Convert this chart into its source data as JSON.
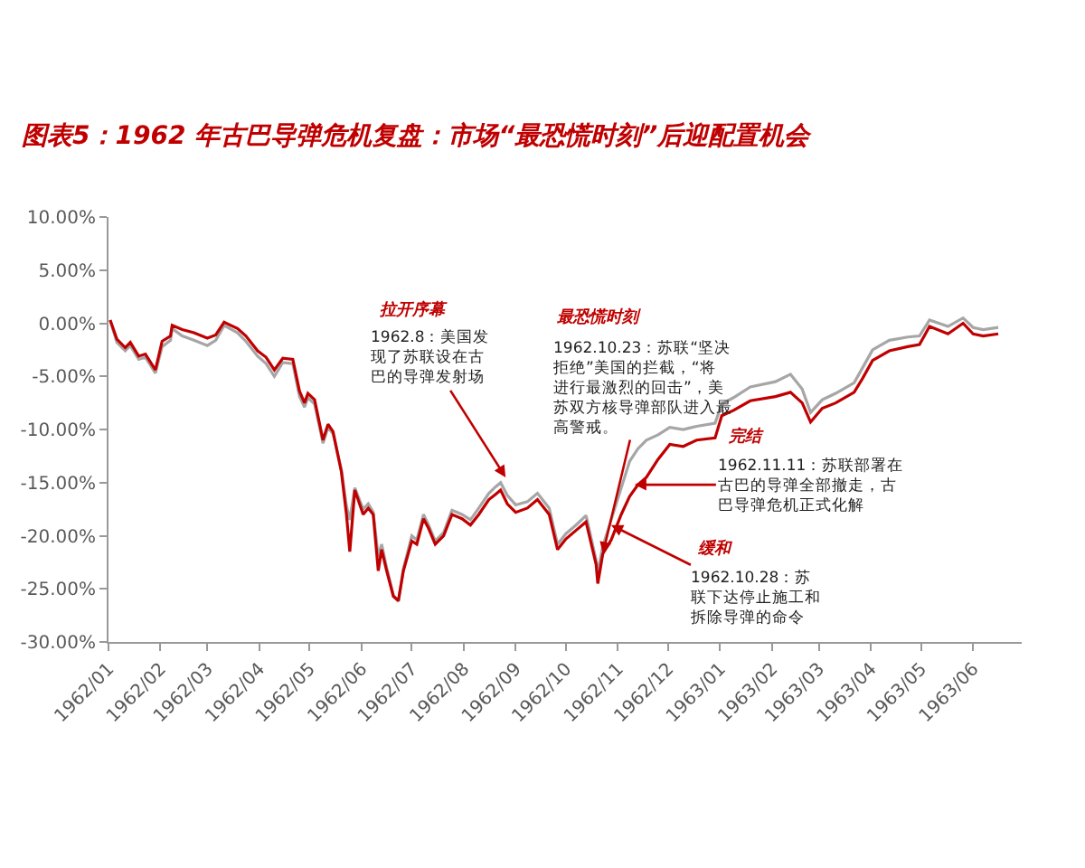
{
  "chart_data": {
    "type": "line",
    "title": "图表5：1962 年古巴导弹危机复盘：市场“最恐慌时刻”后迎配置机会",
    "x": [
      "1962-01-02",
      "1962-01-06",
      "1962-01-11",
      "1962-01-14",
      "1962-01-19",
      "1962-01-23",
      "1962-01-29",
      "1962-02-02",
      "1962-02-07",
      "1962-02-08",
      "1962-02-14",
      "1962-02-21",
      "1962-03-01",
      "1962-03-06",
      "1962-03-11",
      "1962-03-19",
      "1962-03-24",
      "1962-03-31",
      "1962-04-05",
      "1962-04-10",
      "1962-04-15",
      "1962-04-21",
      "1962-04-25",
      "1962-04-28",
      "1962-04-30",
      "1962-05-04",
      "1962-05-09",
      "1962-05-12",
      "1962-05-15",
      "1962-05-20",
      "1962-05-23",
      "1962-05-25",
      "1962-05-28",
      "1962-06-02",
      "1962-06-05",
      "1962-06-08",
      "1962-06-11",
      "1962-06-13",
      "1962-06-16",
      "1962-06-20",
      "1962-06-23",
      "1962-06-26",
      "1962-07-01",
      "1962-07-04",
      "1962-07-08",
      "1962-07-11",
      "1962-07-15",
      "1962-07-20",
      "1962-07-25",
      "1962-07-31",
      "1962-08-05",
      "1962-08-10",
      "1962-08-16",
      "1962-08-20",
      "1962-08-23",
      "1962-08-27",
      "1962-09-01",
      "1962-09-08",
      "1962-09-14",
      "1962-09-21",
      "1962-09-26",
      "1962-10-01",
      "1962-10-07",
      "1962-10-13",
      "1962-10-19",
      "1962-10-20",
      "1962-10-23",
      "1962-10-28",
      "1962-11-03",
      "1962-11-08",
      "1962-11-13",
      "1962-11-18",
      "1962-11-25",
      "1962-12-02",
      "1962-12-10",
      "1962-12-18",
      "1962-12-29",
      "1963-01-02",
      "1963-01-09",
      "1963-01-19",
      "1963-02-03",
      "1963-02-12",
      "1963-02-19",
      "1963-02-24",
      "1963-03-03",
      "1963-03-11",
      "1963-03-22",
      "1963-03-27",
      "1963-04-02",
      "1963-04-12",
      "1963-04-23",
      "1963-04-30",
      "1963-05-06",
      "1963-05-17",
      "1963-05-26",
      "1963-06-01",
      "1963-06-07",
      "1963-06-16"
    ],
    "series": [
      {
        "color": "#a6a6a6",
        "values": [
          0.3,
          -1.8,
          -2.6,
          -2.1,
          -3.4,
          -3.2,
          -4.7,
          -2.2,
          -1.6,
          -0.5,
          -1.2,
          -1.6,
          -2.1,
          -1.6,
          -0.2,
          -0.9,
          -1.7,
          -3.1,
          -3.8,
          -5.0,
          -3.7,
          -3.8,
          -6.9,
          -7.9,
          -7.0,
          -7.6,
          -11.3,
          -9.8,
          -10.4,
          -13.8,
          -17.2,
          -18.5,
          -15.5,
          -17.5,
          -17.0,
          -17.8,
          -22.0,
          -20.8,
          -23.0,
          -25.6,
          -26.2,
          -23.1,
          -20.0,
          -20.4,
          -18.0,
          -19.0,
          -20.5,
          -19.7,
          -17.6,
          -18.0,
          -18.5,
          -17.4,
          -16.0,
          -15.4,
          -15.0,
          -16.2,
          -17.1,
          -16.8,
          -16.0,
          -17.4,
          -20.8,
          -19.8,
          -19.0,
          -18.1,
          -22.3,
          -23.5,
          -21.0,
          -18.5,
          -15.5,
          -13.0,
          -11.8,
          -11.0,
          -10.5,
          -9.8,
          -10.0,
          -9.7,
          -9.4,
          -7.6,
          -7.0,
          -6.0,
          -5.5,
          -4.8,
          -6.2,
          -8.4,
          -7.2,
          -6.6,
          -5.6,
          -4.2,
          -2.5,
          -1.6,
          -1.3,
          -1.2,
          0.3,
          -0.3,
          0.5,
          -0.4,
          -0.6,
          -0.4
        ]
      },
      {
        "color": "#c00000",
        "values": [
          0.3,
          -1.5,
          -2.3,
          -1.8,
          -3.1,
          -2.9,
          -4.4,
          -1.7,
          -1.2,
          -0.2,
          -0.6,
          -0.9,
          -1.4,
          -1.1,
          0.1,
          -0.5,
          -1.2,
          -2.6,
          -3.2,
          -4.4,
          -3.3,
          -3.4,
          -6.4,
          -7.5,
          -6.6,
          -7.2,
          -11.0,
          -9.5,
          -10.2,
          -14.0,
          -18.0,
          -21.5,
          -15.7,
          -18.0,
          -17.4,
          -18.0,
          -23.3,
          -21.3,
          -23.3,
          -25.7,
          -26.1,
          -23.3,
          -20.5,
          -20.8,
          -18.4,
          -19.3,
          -20.8,
          -20.0,
          -18.0,
          -18.4,
          -19.0,
          -18.0,
          -16.6,
          -16.1,
          -15.7,
          -17.0,
          -17.8,
          -17.4,
          -16.6,
          -18.0,
          -21.3,
          -20.3,
          -19.5,
          -18.7,
          -22.7,
          -24.5,
          -21.7,
          -20.4,
          -18.0,
          -16.3,
          -15.2,
          -14.5,
          -12.8,
          -11.4,
          -11.6,
          -11.0,
          -10.8,
          -8.7,
          -8.2,
          -7.3,
          -6.9,
          -6.5,
          -7.5,
          -9.3,
          -8.0,
          -7.5,
          -6.5,
          -5.2,
          -3.5,
          -2.6,
          -2.2,
          -2.0,
          -0.3,
          -1.0,
          0.0,
          -1.0,
          -1.2,
          -1.0
        ]
      }
    ],
    "xlim": [
      "1962-01-01",
      "1963-06-30"
    ],
    "xticks": [
      {
        "value": "1962-01-01",
        "label": "1962/01"
      },
      {
        "value": "1962-02-01",
        "label": "1962/02"
      },
      {
        "value": "1962-03-01",
        "label": "1962/03"
      },
      {
        "value": "1962-04-01",
        "label": "1962/04"
      },
      {
        "value": "1962-05-01",
        "label": "1962/05"
      },
      {
        "value": "1962-06-01",
        "label": "1962/06"
      },
      {
        "value": "1962-07-01",
        "label": "1962/07"
      },
      {
        "value": "1962-08-01",
        "label": "1962/08"
      },
      {
        "value": "1962-09-01",
        "label": "1962/09"
      },
      {
        "value": "1962-10-01",
        "label": "1962/10"
      },
      {
        "value": "1962-11-01",
        "label": "1962/11"
      },
      {
        "value": "1962-12-01",
        "label": "1962/12"
      },
      {
        "value": "1963-01-01",
        "label": "1963/01"
      },
      {
        "value": "1963-02-01",
        "label": "1963/02"
      },
      {
        "value": "1963-03-01",
        "label": "1963/03"
      },
      {
        "value": "1963-04-01",
        "label": "1963/04"
      },
      {
        "value": "1963-05-01",
        "label": "1963/05"
      },
      {
        "value": "1963-06-01",
        "label": "1963/06"
      }
    ],
    "ylim": [
      -30,
      10
    ],
    "yticks": [
      {
        "value": 10,
        "label": "10.00%"
      },
      {
        "value": 5,
        "label": "5.00%"
      },
      {
        "value": 0,
        "label": "0.00%"
      },
      {
        "value": -5,
        "label": "-5.00%"
      },
      {
        "value": -10,
        "label": "-10.00%"
      },
      {
        "value": -15,
        "label": "-15.00%"
      },
      {
        "value": -20,
        "label": "-20.00%"
      },
      {
        "value": -25,
        "label": "-25.00%"
      },
      {
        "value": -30,
        "label": "-30.00%"
      }
    ],
    "annotations": [
      "拉开序幕",
      {
        "text": "1962.8：美国发现了苏联设在古巴的导弹发射场",
        "x": "1962-08-26",
        "y": -14.5
      },
      "最恐慌时刻",
      {
        "text": "1962.10.23：苏联“坚决拒绝”美国的拦截，“将进行最激烈的回击”，美苏双方核导弹部队进入最高警戒。",
        "x": "1962-10-23",
        "y": -21.7
      },
      "完结",
      {
        "text": "1962.11.11：苏联部署在古巴的导弹全部撤走，古巴导弹危机正式化解",
        "x": "1962-11-11",
        "y": -15.2
      },
      "缓和",
      {
        "text": "1962.10.28：苏联下达停止施工和拆除导弹的命令",
        "x": "1962-10-28",
        "y": -19.0
      }
    ]
  }
}
